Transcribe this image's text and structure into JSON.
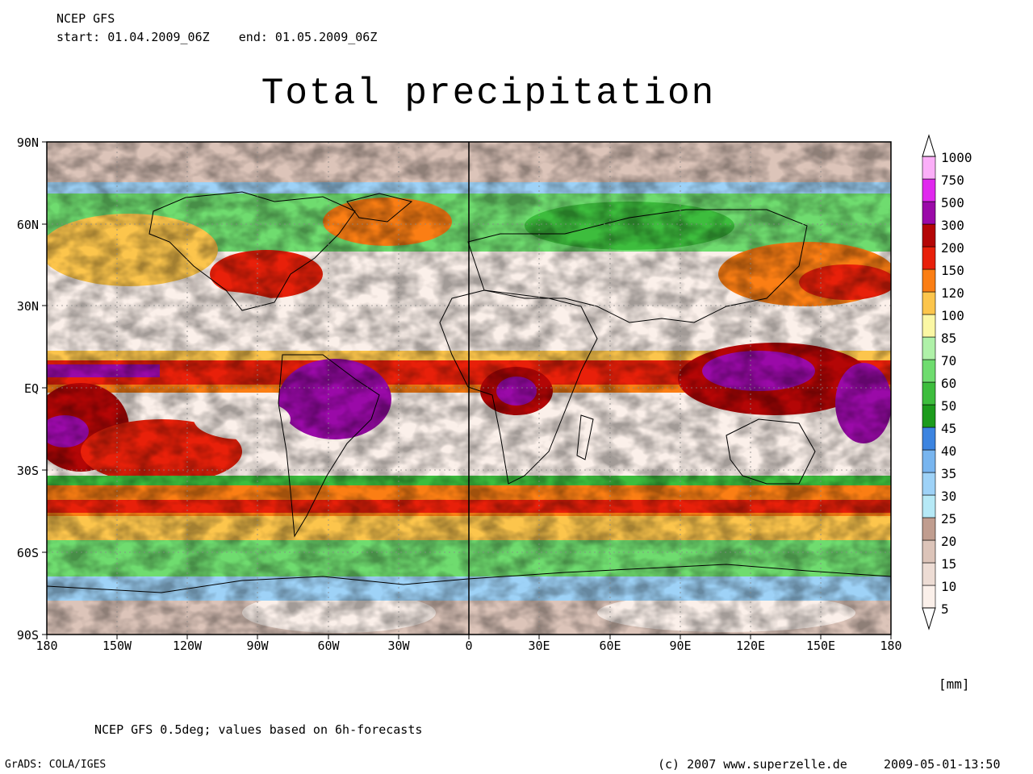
{
  "header": {
    "model": "NCEP GFS",
    "period": "start: 01.04.2009_06Z    end: 01.05.2009_06Z"
  },
  "title": "Total precipitation",
  "map": {
    "lat_labels": [
      "90N",
      "60N",
      "30N",
      "EQ",
      "30S",
      "60S",
      "90S"
    ],
    "lon_labels": [
      "180",
      "150W",
      "120W",
      "90W",
      "60W",
      "30W",
      "0",
      "30E",
      "60E",
      "90E",
      "120E",
      "150E",
      "180"
    ]
  },
  "colorbar": {
    "unit": "[mm]",
    "levels": [
      "5",
      "10",
      "15",
      "20",
      "25",
      "30",
      "35",
      "40",
      "45",
      "50",
      "60",
      "70",
      "85",
      "100",
      "120",
      "150",
      "200",
      "300",
      "500",
      "750",
      "1000"
    ],
    "colors": [
      "#fbf0ea",
      "#eddcd4",
      "#dcc4b9",
      "#c09d8f",
      "#b6e9f6",
      "#9ed2f7",
      "#78b5ef",
      "#3c84e0",
      "#1c9b1c",
      "#3dbd3d",
      "#6fdc6f",
      "#aff1a8",
      "#fbf7a4",
      "#fcc54c",
      "#fb7e14",
      "#e8200a",
      "#b40606",
      "#9a0aa8",
      "#e028ee",
      "#fbaff8"
    ]
  },
  "footer": {
    "note": "NCEP GFS 0.5deg; values based on 6h-forecasts",
    "grads": "GrADS: COLA/IGES",
    "copyright": "(c) 2007 www.superzelle.de",
    "timestamp": "2009-05-01-13:50"
  }
}
